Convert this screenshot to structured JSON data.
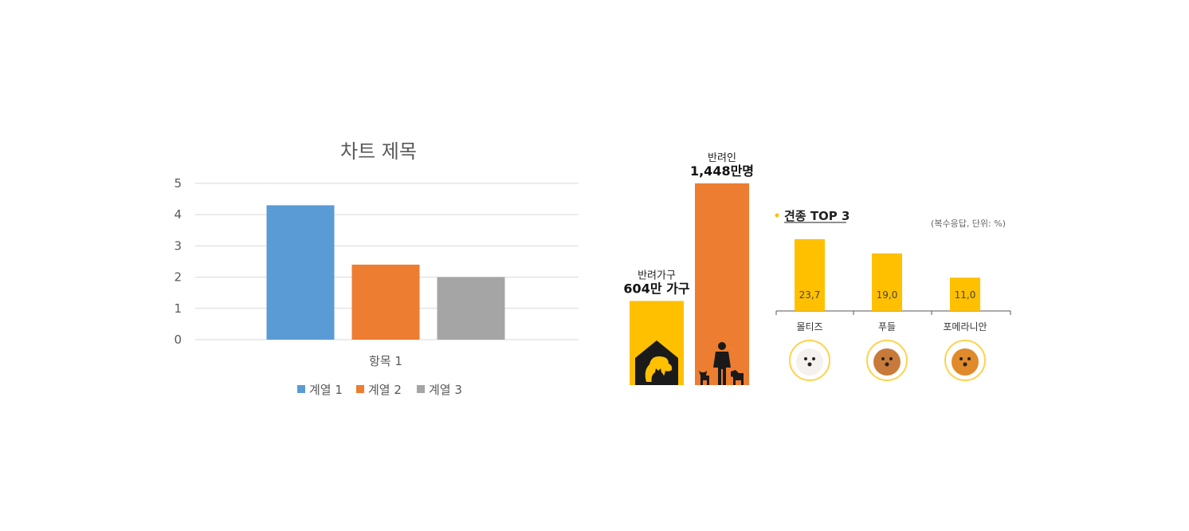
{
  "chart_data": [
    {
      "type": "bar",
      "title": "차트 제목",
      "categories": [
        "항목 1"
      ],
      "series": [
        {
          "name": "계열 1",
          "values": [
            4.3
          ],
          "color": "#5b9bd5"
        },
        {
          "name": "계열 2",
          "values": [
            2.4
          ],
          "color": "#ed7d31"
        },
        {
          "name": "계열 3",
          "values": [
            2.0
          ],
          "color": "#a5a5a5"
        }
      ],
      "yticks": [
        "0",
        "1",
        "2",
        "3",
        "4",
        "5"
      ],
      "ylim": [
        0,
        5
      ],
      "grid": true,
      "legend": "bottom"
    },
    {
      "type": "bar",
      "categories": [
        {
          "caption": "반려가구",
          "value_label": "604만 가구",
          "icon": "dog-cat-house-icon"
        },
        {
          "caption": "반려인",
          "value_label": "1,448만명",
          "icon": "person-with-pets-icon"
        }
      ],
      "values": [
        604,
        1448
      ],
      "unit_labels": [
        "만 가구",
        "만명"
      ],
      "colors": [
        "#ffc000",
        "#ed7d31"
      ]
    },
    {
      "type": "bar",
      "title": "견종 TOP 3",
      "note": "(복수응답, 단위: %)",
      "categories": [
        "몰티즈",
        "푸들",
        "포메라니안"
      ],
      "values": [
        23.7,
        19.0,
        11.0
      ],
      "value_labels": [
        "23,7",
        "19,0",
        "11,0"
      ],
      "color": "#ffc000",
      "icons": [
        "maltese-photo",
        "poodle-photo",
        "pomeranian-photo"
      ]
    }
  ]
}
